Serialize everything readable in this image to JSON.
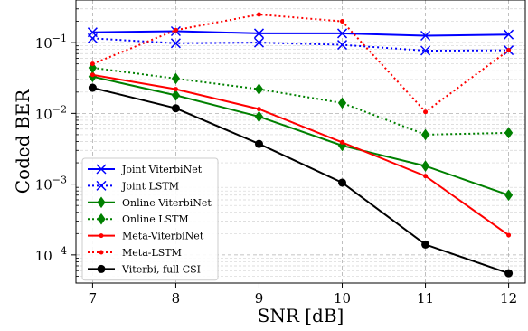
{
  "chart_data": {
    "type": "line",
    "xlabel": "SNR [dB]",
    "ylabel": "Coded BER",
    "xscale": "linear",
    "yscale": "log",
    "xlim": [
      6.8,
      12.2
    ],
    "ylim": [
      4e-05,
      0.4
    ],
    "x": [
      7,
      8,
      9,
      10,
      11,
      12
    ],
    "x_tick_labels": [
      "7",
      "8",
      "9",
      "10",
      "11",
      "12"
    ],
    "y_tick_labels": [
      {
        "value": 0.1,
        "mant": "10",
        "exp": "−1"
      },
      {
        "value": 0.01,
        "mant": "10",
        "exp": "−2"
      },
      {
        "value": 0.001,
        "mant": "10",
        "exp": "−3"
      },
      {
        "value": 0.0001,
        "mant": "10",
        "exp": "−4"
      }
    ],
    "grid": true,
    "legend_position": "lower-left",
    "series": [
      {
        "name": "Joint ViterbiNet",
        "color": "#0000ff",
        "linestyle": "solid",
        "marker": "x",
        "values": [
          0.14,
          0.145,
          0.135,
          0.135,
          0.125,
          0.13
        ]
      },
      {
        "name": "Joint LSTM",
        "color": "#0000ff",
        "linestyle": "dotted",
        "marker": "x",
        "values": [
          0.115,
          0.098,
          0.1,
          0.093,
          0.077,
          0.078
        ]
      },
      {
        "name": "Online ViterbiNet",
        "color": "#008000",
        "linestyle": "solid",
        "marker": "diamond",
        "values": [
          0.033,
          0.018,
          0.009,
          0.0035,
          0.0018,
          0.0007
        ]
      },
      {
        "name": "Online LSTM",
        "color": "#008000",
        "linestyle": "dotted",
        "marker": "diamond",
        "values": [
          0.044,
          0.031,
          0.022,
          0.014,
          0.005,
          0.0053
        ]
      },
      {
        "name": "Meta-ViterbiNet",
        "color": "#ff0000",
        "linestyle": "solid",
        "marker": "dot",
        "values": [
          0.035,
          0.022,
          0.0115,
          0.0039,
          0.0013,
          0.00019
        ]
      },
      {
        "name": "Meta-LSTM",
        "color": "#ff0000",
        "linestyle": "dotted",
        "marker": "dot",
        "values": [
          0.05,
          0.15,
          0.25,
          0.2,
          0.0105,
          0.078
        ]
      },
      {
        "name": "Viterbi, full CSI",
        "color": "#000000",
        "linestyle": "solid",
        "marker": "circle",
        "values": [
          0.023,
          0.0118,
          0.0037,
          0.00105,
          0.00014,
          5.5e-05
        ]
      }
    ]
  }
}
